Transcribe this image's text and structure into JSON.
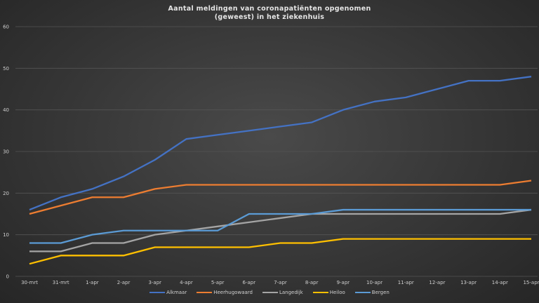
{
  "chart_data": {
    "type": "line",
    "title_line1": "Aantal meldingen van coronapatiënten opgenomen",
    "title_line2": "(geweest) in het ziekenhuis",
    "xlabel": "",
    "ylabel": "",
    "ylim": [
      0,
      60
    ],
    "yticks": [
      0,
      10,
      20,
      30,
      40,
      50,
      60
    ],
    "grid": true,
    "legend_position": "bottom",
    "categories": [
      "30-mrt",
      "31-mrt",
      "1-apr",
      "2-apr",
      "3-apr",
      "4-apr",
      "5-apr",
      "6-apr",
      "7-apr",
      "8-apr",
      "9-apr",
      "10-apr",
      "11-apr",
      "12-apr",
      "13-apr",
      "14-apr",
      "15-apr"
    ],
    "series": [
      {
        "name": "Alkmaar",
        "color": "#4472C4",
        "values": [
          16,
          19,
          21,
          24,
          28,
          33,
          34,
          35,
          36,
          37,
          40,
          42,
          43,
          45,
          47,
          47,
          48
        ]
      },
      {
        "name": "Heerhugowaard",
        "color": "#ED7D31",
        "values": [
          15,
          17,
          19,
          19,
          21,
          22,
          22,
          22,
          22,
          22,
          22,
          22,
          22,
          22,
          22,
          22,
          23
        ]
      },
      {
        "name": "Langedijk",
        "color": "#A5A5A5",
        "values": [
          6,
          6,
          8,
          8,
          10,
          11,
          12,
          13,
          14,
          15,
          15,
          15,
          15,
          15,
          15,
          15,
          16
        ]
      },
      {
        "name": "Heiloo",
        "color": "#FFC000",
        "values": [
          3,
          5,
          5,
          5,
          7,
          7,
          7,
          7,
          8,
          8,
          9,
          9,
          9,
          9,
          9,
          9,
          9
        ]
      },
      {
        "name": "Bergen",
        "color": "#5B9BD5",
        "values": [
          8,
          8,
          10,
          11,
          11,
          11,
          11,
          15,
          15,
          15,
          16,
          16,
          16,
          16,
          16,
          16,
          16
        ]
      }
    ]
  }
}
